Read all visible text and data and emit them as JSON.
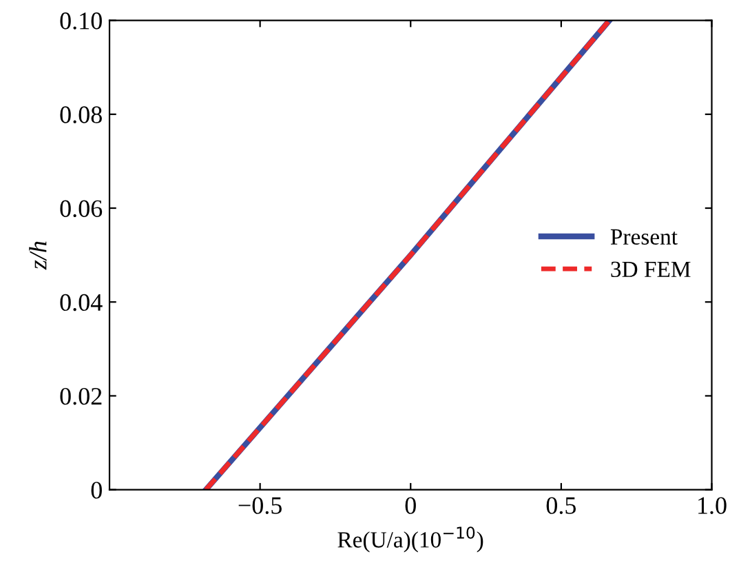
{
  "chart_data": {
    "type": "line",
    "xlabel": "Re(U/a)(10$^{−10}$)",
    "ylabel": "z/h",
    "xlim": [
      -1,
      1
    ],
    "xticks": [
      -0.5,
      0,
      0.5,
      {
        "value": 1,
        "label": "1.0"
      }
    ],
    "ylim": [
      0,
      0.1
    ],
    "yticks": [
      0,
      {
        "value": 0.02,
        "label": "0.02"
      },
      {
        "value": 0.04,
        "label": "0.04"
      },
      {
        "value": 0.06,
        "label": "0.06"
      },
      {
        "value": 0.08,
        "label": "0.08"
      },
      {
        "value": 0.1,
        "label": "0.10"
      }
    ],
    "grid": false,
    "legend": "right",
    "marker": "none",
    "series": [
      {
        "name": "Present",
        "color": "#3a4fa0",
        "line_style": "solid",
        "x": [
          -0.68,
          -0.34,
          0.0,
          0.33,
          0.66
        ],
        "values": [
          0,
          0.025,
          0.05,
          0.075,
          0.1
        ]
      },
      {
        "name": "3D FEM",
        "color": "#ee2a2a",
        "line_style": "dashed",
        "x": [
          -0.68,
          -0.34,
          0.0,
          0.33,
          0.66
        ],
        "values": [
          0,
          0.025,
          0.05,
          0.075,
          0.1
        ]
      }
    ]
  }
}
